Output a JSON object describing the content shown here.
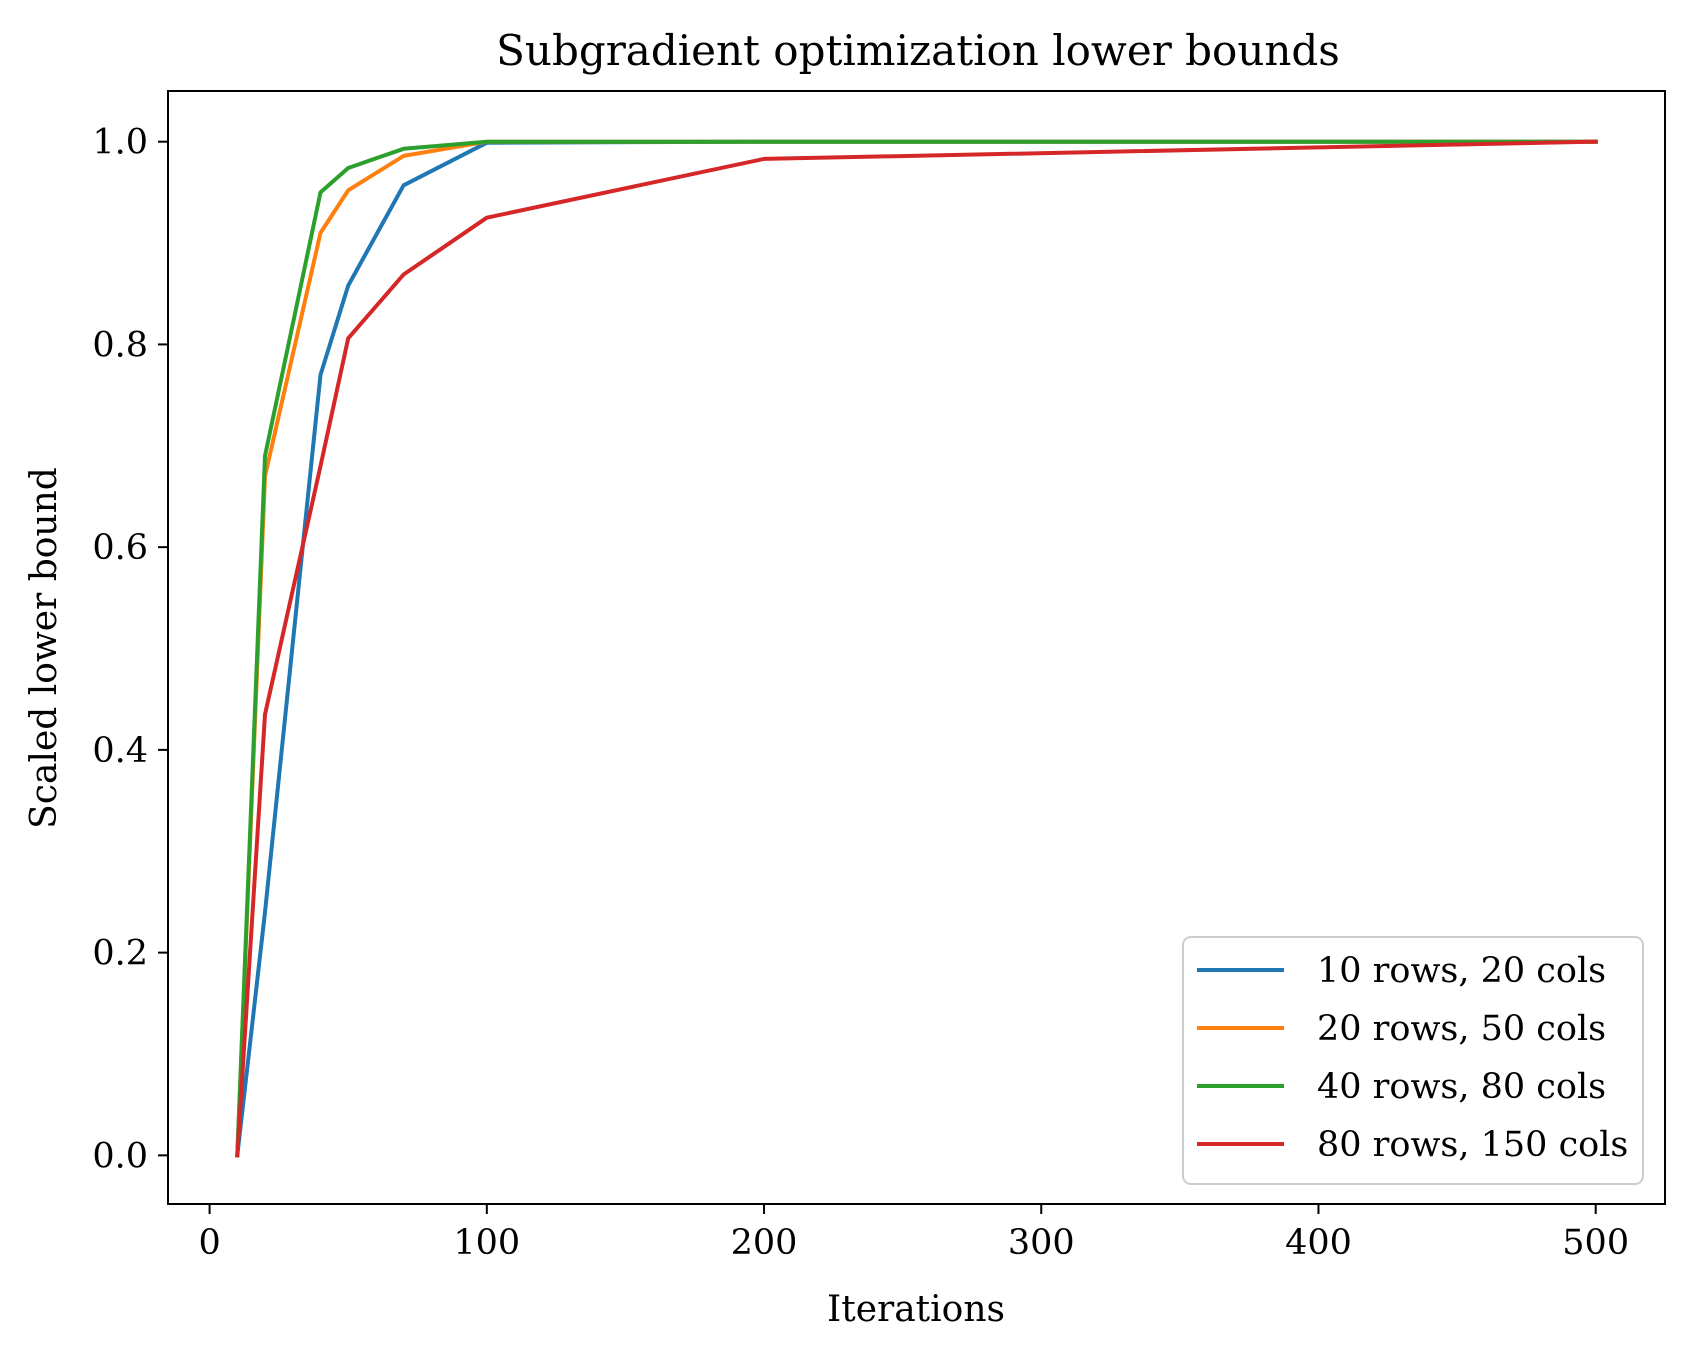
{
  "chart_data": {
    "type": "line",
    "title": "Subgradient optimization lower bounds",
    "xlabel": "Iterations",
    "ylabel": "Scaled lower bound",
    "xlim": [
      -15,
      525
    ],
    "ylim": [
      -0.048,
      1.05
    ],
    "xticks": [
      0,
      100,
      200,
      300,
      400,
      500
    ],
    "xtick_labels": [
      "0",
      "100",
      "200",
      "300",
      "400",
      "500"
    ],
    "yticks": [
      0.0,
      0.2,
      0.4,
      0.6,
      0.8,
      1.0
    ],
    "ytick_labels": [
      "0.0",
      "0.2",
      "0.4",
      "0.6",
      "0.8",
      "1.0"
    ],
    "grid": false,
    "legend_position": "lower-right",
    "series": [
      {
        "name": "10 rows, 20 cols",
        "color": "#1f77b4",
        "x": [
          10,
          20,
          40,
          50,
          70,
          100,
          200,
          500
        ],
        "y": [
          0.0,
          0.24,
          0.77,
          0.858,
          0.957,
          0.999,
          1.0,
          1.0
        ]
      },
      {
        "name": "20 rows, 50 cols",
        "color": "#ff7f0e",
        "x": [
          10,
          20,
          40,
          50,
          70,
          100,
          200,
          500
        ],
        "y": [
          0.0,
          0.67,
          0.91,
          0.952,
          0.986,
          1.0,
          1.0,
          1.0
        ]
      },
      {
        "name": "40 rows, 80 cols",
        "color": "#2ca02c",
        "x": [
          10,
          20,
          40,
          50,
          70,
          100,
          200,
          500
        ],
        "y": [
          0.0,
          0.69,
          0.95,
          0.974,
          0.993,
          1.0,
          1.0,
          1.0
        ]
      },
      {
        "name": "80 rows, 150 cols",
        "color": "#d62728",
        "x": [
          10,
          20,
          40,
          50,
          70,
          100,
          200,
          500
        ],
        "y": [
          0.0,
          0.435,
          0.68,
          0.806,
          0.869,
          0.925,
          0.983,
          1.0
        ]
      }
    ]
  }
}
